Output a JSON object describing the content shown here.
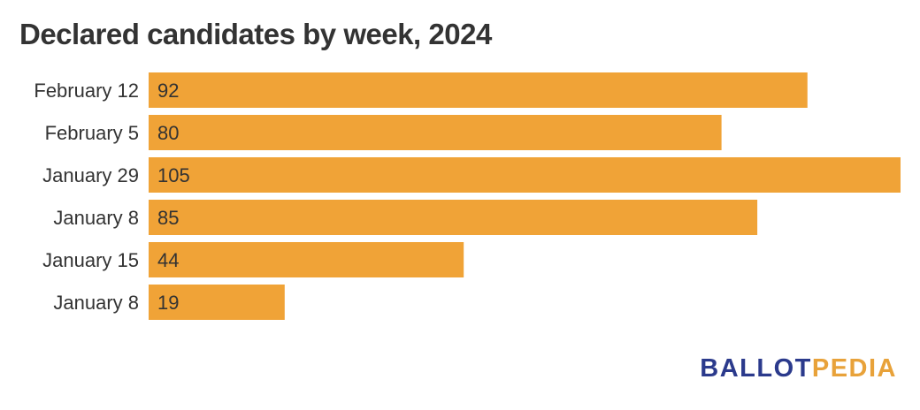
{
  "chart_data": {
    "type": "bar",
    "orientation": "horizontal",
    "title": "Declared candidates by week, 2024",
    "categories": [
      "February 12",
      "February 5",
      "January 29",
      "January 8",
      "January 15",
      "January 8"
    ],
    "values": [
      92,
      80,
      105,
      85,
      44,
      19
    ],
    "xlabel": "",
    "ylabel": "",
    "xlim": [
      0,
      105
    ],
    "grid": false,
    "legend": "none",
    "bar_color": "#f0a337",
    "label_color": "#333333"
  },
  "branding": {
    "logo_part_a": "BALLOT",
    "logo_part_b": "PEDIA",
    "color_a": "#2b3a8c",
    "color_b": "#e8a23a"
  }
}
